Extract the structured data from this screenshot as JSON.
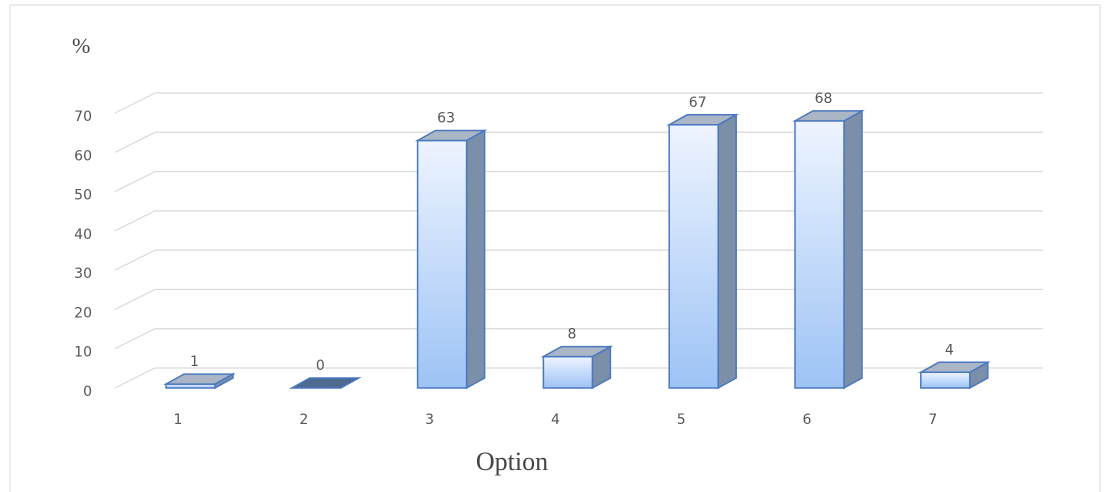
{
  "chart_data": {
    "type": "bar3d",
    "y_label": "%",
    "x_label": "Option",
    "categories": [
      "1",
      "2",
      "3",
      "4",
      "5",
      "6",
      "7"
    ],
    "values": [
      1,
      0,
      63,
      8,
      67,
      68,
      4
    ],
    "color": "#9dc3f5",
    "ylim": [
      0,
      70
    ],
    "yticks": [
      0,
      10,
      20,
      30,
      40,
      50,
      60,
      70
    ],
    "grid": true
  }
}
